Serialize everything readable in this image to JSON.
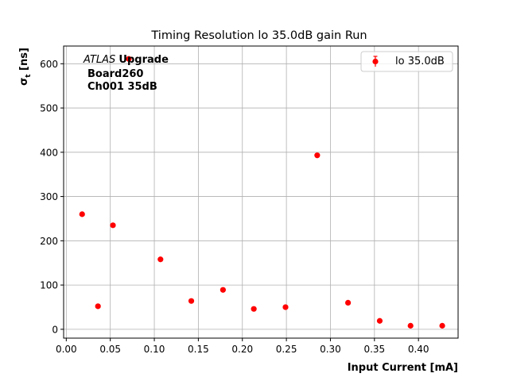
{
  "chart_data": {
    "type": "scatter",
    "title": "Timing Resolution lo 35.0dB gain Run",
    "xlabel": "Input Current [mA]",
    "ylabel": "σt [ns]",
    "xlim": [
      -0.003,
      0.445
    ],
    "ylim": [
      -20,
      640
    ],
    "xticks": [
      "0.00",
      "0.05",
      "0.10",
      "0.15",
      "0.20",
      "0.25",
      "0.30",
      "0.35",
      "0.40"
    ],
    "xtick_values": [
      0.0,
      0.05,
      0.1,
      0.15,
      0.2,
      0.25,
      0.3,
      0.35,
      0.4
    ],
    "yticks": [
      "0",
      "100",
      "200",
      "300",
      "400",
      "500",
      "600"
    ],
    "ytick_values": [
      0,
      100,
      200,
      300,
      400,
      500,
      600
    ],
    "grid": true,
    "legend_position": "top-right",
    "marker_color": "#ff0000",
    "series": [
      {
        "name": "lo 35.0dB",
        "x": [
          0.018,
          0.036,
          0.053,
          0.071,
          0.107,
          0.142,
          0.178,
          0.213,
          0.249,
          0.285,
          0.32,
          0.356,
          0.391,
          0.427
        ],
        "y": [
          260,
          52,
          235,
          611,
          158,
          64,
          89,
          46,
          50,
          393,
          60,
          19,
          8,
          8
        ]
      }
    ],
    "annotation": {
      "atlas": "ATLAS",
      "upgrade": "Upgrade",
      "line2": "Board260",
      "line3": "Ch001 35dB"
    }
  }
}
